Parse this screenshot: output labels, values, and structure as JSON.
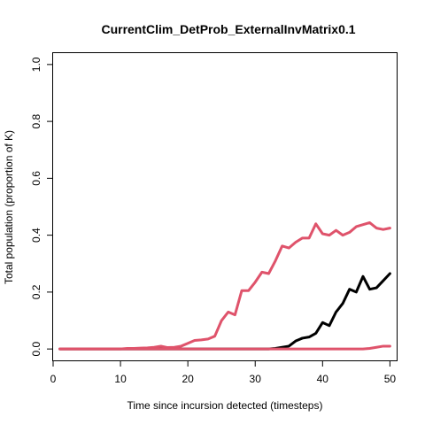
{
  "chart_data": {
    "type": "line",
    "title": "CurrentClim_DetProb_ExternalInvMatrix0.1",
    "xlabel": "Time since incursion detected (timesteps)",
    "ylabel": "Total population (proportion of K)",
    "xlim": [
      0,
      51
    ],
    "ylim": [
      -0.04,
      1.04
    ],
    "xticks": [
      0,
      10,
      20,
      30,
      40,
      50
    ],
    "yticks": [
      0.0,
      0.2,
      0.4,
      0.6,
      0.8,
      1.0
    ],
    "ytick_labels": [
      "0.0",
      "0.2",
      "0.4",
      "0.6",
      "0.8",
      "1.0"
    ],
    "grid": false,
    "legend": "none",
    "series": [
      {
        "color": "#000000",
        "x": [
          1,
          2,
          3,
          4,
          5,
          6,
          7,
          8,
          9,
          10,
          11,
          12,
          13,
          14,
          15,
          16,
          17,
          18,
          19,
          20,
          21,
          22,
          23,
          24,
          25,
          26,
          27,
          28,
          29,
          30,
          31,
          32,
          33,
          34,
          35,
          36,
          37,
          38,
          39,
          40,
          41,
          42,
          43,
          44,
          45,
          46,
          47,
          48,
          49,
          50
        ],
        "y": [
          0,
          0,
          0,
          0,
          0,
          0,
          0,
          0,
          0,
          0,
          0,
          0,
          0,
          0,
          0,
          0,
          0,
          0,
          0,
          0,
          0,
          0,
          0,
          0,
          0,
          0,
          0,
          0,
          0,
          0,
          0,
          0,
          0.002,
          0.006,
          0.01,
          0.028,
          0.038,
          0.042,
          0.055,
          0.093,
          0.082,
          0.13,
          0.16,
          0.21,
          0.2,
          0.255,
          0.21,
          0.215,
          0.24,
          0.265
        ]
      },
      {
        "color": "#DF536B",
        "x": [
          1,
          2,
          3,
          4,
          5,
          6,
          7,
          8,
          9,
          10,
          11,
          12,
          13,
          14,
          15,
          16,
          17,
          18,
          19,
          20,
          21,
          22,
          23,
          24,
          25,
          26,
          27,
          28,
          29,
          30,
          31,
          32,
          33,
          34,
          35,
          36,
          37,
          38,
          39,
          40,
          41,
          42,
          43,
          44,
          45,
          46,
          47,
          48,
          49,
          50
        ],
        "y": [
          0,
          0,
          0,
          0,
          0,
          0,
          0,
          0,
          0,
          0,
          0.002,
          0.002,
          0.003,
          0.004,
          0.006,
          0.01,
          0.005,
          0.006,
          0.01,
          0.02,
          0.03,
          0.032,
          0.035,
          0.045,
          0.1,
          0.13,
          0.12,
          0.205,
          0.205,
          0.235,
          0.27,
          0.265,
          0.31,
          0.362,
          0.355,
          0.375,
          0.39,
          0.39,
          0.44,
          0.405,
          0.4,
          0.417,
          0.4,
          0.41,
          0.43,
          0.437,
          0.444,
          0.425,
          0.42,
          0.425
        ]
      },
      {
        "color": "#DF536B",
        "x": [
          1,
          2,
          3,
          4,
          5,
          6,
          7,
          8,
          9,
          10,
          11,
          12,
          13,
          14,
          15,
          16,
          17,
          18,
          19,
          20,
          21,
          22,
          23,
          24,
          25,
          26,
          27,
          28,
          29,
          30,
          31,
          32,
          33,
          34,
          35,
          36,
          37,
          38,
          39,
          40,
          41,
          42,
          43,
          44,
          45,
          46,
          47,
          48,
          49,
          50
        ],
        "y": [
          0,
          0,
          0,
          0,
          0,
          0,
          0,
          0,
          0,
          0,
          0,
          0,
          0,
          0,
          0,
          0,
          0,
          0,
          0,
          0,
          0,
          0,
          0,
          0,
          0,
          0,
          0,
          0,
          0,
          0,
          0,
          0,
          0,
          0,
          0,
          0,
          0,
          0,
          0,
          0,
          0,
          0,
          0,
          0,
          0,
          0,
          0.002,
          0.006,
          0.01,
          0.01
        ]
      }
    ]
  }
}
